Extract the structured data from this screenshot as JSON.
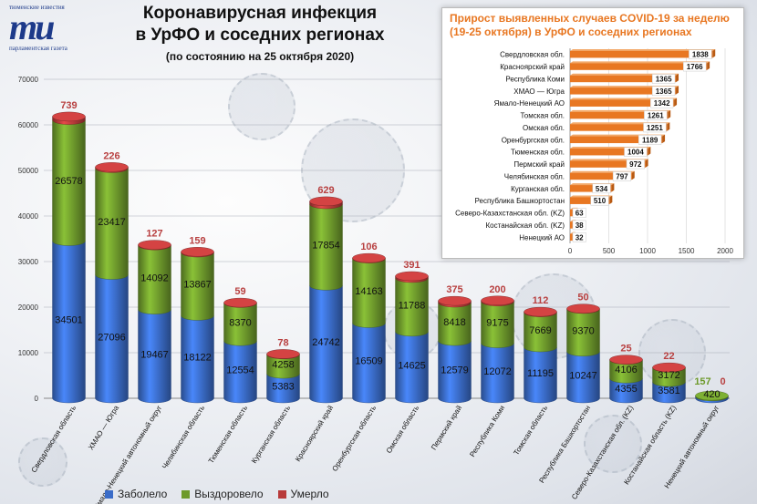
{
  "header": {
    "title_line1": "Коронавирусная инфекция",
    "title_line2": "в УрФО и соседних регионах",
    "subtitle": "(по состоянию на 25 октября 2020)"
  },
  "logo": {
    "top_text": "тюменские известия",
    "mark": "ти",
    "bottom_text": "парламентская газета"
  },
  "legend": {
    "sick": "Заболело",
    "recovered": "Выздоровело",
    "died": "Умерло"
  },
  "colors": {
    "sick": "#3a6cc8",
    "recovered": "#6e9a2c",
    "died": "#b83a3a",
    "inset_bar": "#e87722",
    "died_label": "#b84040",
    "inset_title": "#e87722"
  },
  "chart_data": [
    {
      "type": "bar",
      "stacked": true,
      "three_d": true,
      "categories": [
        "Свердловская область",
        "ХМАО — Югра",
        "Ямало-Ненецкий автономный округ",
        "Челябинская область",
        "Тюменская область",
        "Курганская область",
        "Красноярский край",
        "Оренбургская область",
        "Омская область",
        "Пермский край",
        "Республика Коми",
        "Томская область",
        "Республика Башкортостан",
        "Северо-Казахстанская обл. (KZ)",
        "Костанайская область (KZ)",
        "Ненецкий автономный округ"
      ],
      "series": [
        {
          "name": "Заболело",
          "values": [
            34501,
            27096,
            19467,
            18122,
            12554,
            5383,
            24742,
            16509,
            14625,
            12579,
            12072,
            11195,
            10247,
            4355,
            3581,
            420
          ]
        },
        {
          "name": "Выздоровело",
          "values": [
            26578,
            23417,
            14092,
            13867,
            8370,
            4258,
            17854,
            14163,
            11788,
            8418,
            9175,
            7669,
            9370,
            4106,
            3172,
            157
          ]
        },
        {
          "name": "Умерло",
          "values": [
            739,
            226,
            127,
            159,
            59,
            78,
            629,
            106,
            391,
            375,
            200,
            112,
            50,
            25,
            22,
            0
          ]
        }
      ],
      "ylim": [
        0,
        70000
      ],
      "yticks": [
        0,
        10000,
        20000,
        30000,
        40000,
        50000,
        60000,
        70000
      ],
      "legend_position": "bottom-left"
    },
    {
      "type": "bar",
      "orientation": "horizontal",
      "title": "Прирост выявленных случаев COVID-19 за неделю (19-25 октября) в УрФО и соседних регионах",
      "categories": [
        "Свердловская обл.",
        "Красноярский край",
        "Республика Коми",
        "ХМАО — Югра",
        "Ямало-Ненецкий АО",
        "Томская обл.",
        "Омская обл.",
        "Оренбургская обл.",
        "Тюменская обл.",
        "Пермский край",
        "Челябинская обл.",
        "Курганская обл.",
        "Республика Башкортостан",
        "Северо-Казахстанская обл. (KZ)",
        "Костанайская обл. (KZ)",
        "Ненецкий АО"
      ],
      "values": [
        1838,
        1766,
        1365,
        1365,
        1342,
        1261,
        1251,
        1189,
        1004,
        972,
        797,
        534,
        510,
        63,
        38,
        32
      ],
      "xlim": [
        0,
        2000
      ],
      "xticks": [
        0,
        500,
        1000,
        1500,
        2000
      ]
    }
  ]
}
